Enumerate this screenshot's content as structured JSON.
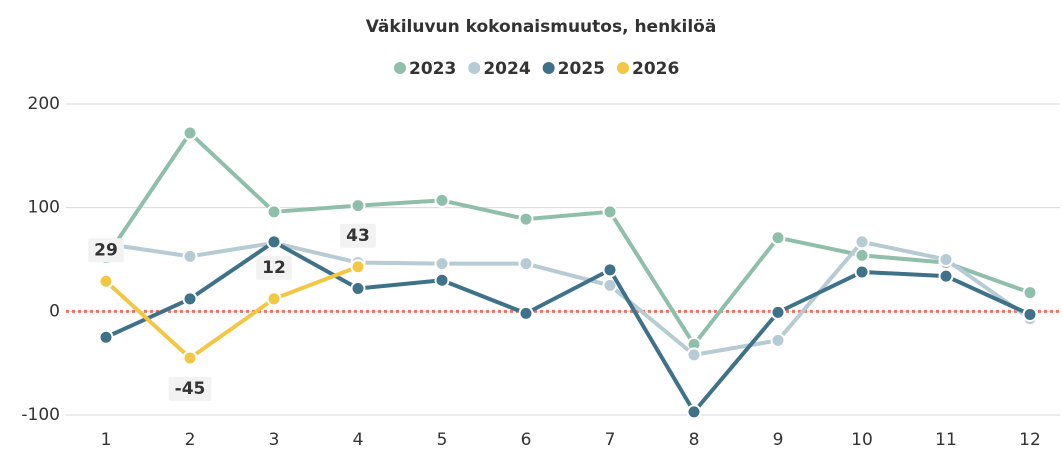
{
  "chart_data": {
    "type": "line",
    "title": "Väkiluvun kokonaismuutos, henkilöä",
    "categories": [
      "1",
      "2",
      "3",
      "4",
      "5",
      "6",
      "7",
      "8",
      "9",
      "10",
      "11",
      "12"
    ],
    "series": [
      {
        "name": "2023",
        "color": "#8fbfaa",
        "values": [
          52,
          172,
          96,
          102,
          107,
          89,
          96,
          -32,
          71,
          54,
          47,
          18
        ]
      },
      {
        "name": "2024",
        "color": "#b7cbd4",
        "values": [
          65,
          53,
          66,
          47,
          46,
          46,
          25,
          -42,
          -28,
          67,
          50,
          -7
        ]
      },
      {
        "name": "2025",
        "color": "#3f7289",
        "values": [
          -25,
          12,
          67,
          22,
          30,
          -2,
          40,
          -97,
          -1,
          38,
          34,
          -3
        ]
      },
      {
        "name": "2026",
        "color": "#f2c744",
        "values": [
          29,
          -45,
          12,
          43,
          null,
          null,
          null,
          null,
          null,
          null,
          null,
          null
        ],
        "data_labels": true
      }
    ],
    "ylim": [
      -100,
      200
    ],
    "yticks": [
      -100,
      0,
      100,
      200
    ],
    "grid": true,
    "reference_line": {
      "value": 0,
      "color": "#e8766a"
    }
  }
}
